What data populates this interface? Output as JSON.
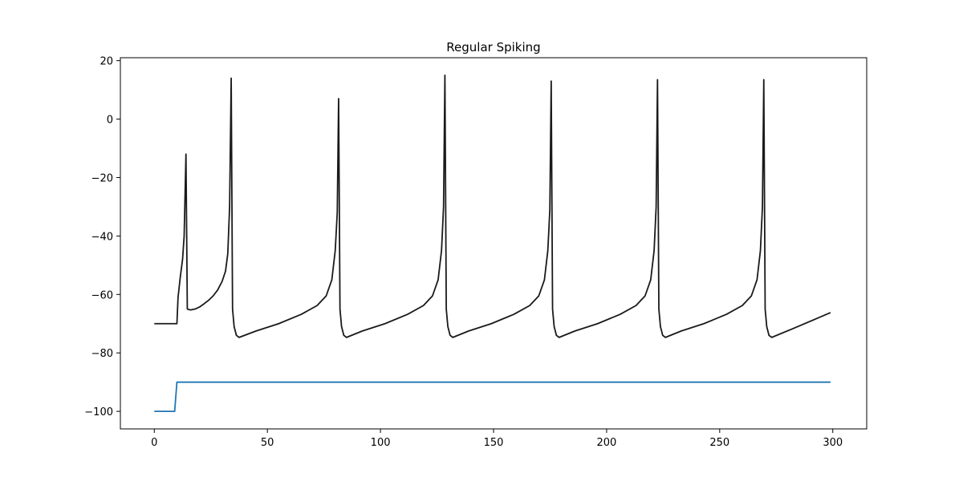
{
  "chart_data": {
    "type": "line",
    "title": "Regular Spiking",
    "xlabel": "",
    "ylabel": "",
    "xlim": [
      -15,
      315
    ],
    "ylim": [
      -106,
      21
    ],
    "x_ticks": [
      0,
      50,
      100,
      150,
      200,
      250,
      300
    ],
    "y_ticks": [
      -100,
      -80,
      -60,
      -40,
      -20,
      0,
      20
    ],
    "grid": false,
    "legend": "none",
    "series": [
      {
        "color": "#1a1a1a",
        "points": [
          [
            0,
            -70
          ],
          [
            10,
            -70
          ],
          [
            10.5,
            -61
          ],
          [
            11.5,
            -54
          ],
          [
            12.5,
            -48
          ],
          [
            13.2,
            -40
          ],
          [
            14,
            -12
          ],
          [
            14.6,
            -65
          ],
          [
            16,
            -65.3
          ],
          [
            18,
            -65
          ],
          [
            20,
            -64.3
          ],
          [
            22,
            -63.2
          ],
          [
            24,
            -62
          ],
          [
            26,
            -60.5
          ],
          [
            28,
            -58.5
          ],
          [
            30,
            -55.5
          ],
          [
            31.5,
            -52
          ],
          [
            32.5,
            -46
          ],
          [
            33.3,
            -30
          ],
          [
            34,
            14
          ],
          [
            34.6,
            -65
          ],
          [
            35.3,
            -71
          ],
          [
            36.3,
            -74
          ],
          [
            37.5,
            -74.7
          ],
          [
            45,
            -72.5
          ],
          [
            55,
            -70
          ],
          [
            65,
            -66.8
          ],
          [
            72,
            -63.8
          ],
          [
            76,
            -60.5
          ],
          [
            78.5,
            -55
          ],
          [
            80,
            -45
          ],
          [
            80.9,
            -32
          ],
          [
            81.5,
            7
          ],
          [
            82.1,
            -65
          ],
          [
            82.8,
            -71
          ],
          [
            83.8,
            -74
          ],
          [
            85,
            -74.7
          ],
          [
            92,
            -72.5
          ],
          [
            102,
            -70
          ],
          [
            112,
            -66.8
          ],
          [
            119,
            -63.8
          ],
          [
            123,
            -60.5
          ],
          [
            125.5,
            -55
          ],
          [
            127,
            -45
          ],
          [
            127.9,
            -30
          ],
          [
            128.5,
            15
          ],
          [
            129.1,
            -65
          ],
          [
            129.8,
            -71
          ],
          [
            130.8,
            -74
          ],
          [
            132,
            -74.7
          ],
          [
            139,
            -72.5
          ],
          [
            149,
            -70
          ],
          [
            159,
            -66.8
          ],
          [
            166,
            -63.8
          ],
          [
            170,
            -60.5
          ],
          [
            172.5,
            -55
          ],
          [
            174,
            -45
          ],
          [
            174.9,
            -31
          ],
          [
            175.5,
            13
          ],
          [
            176.1,
            -65
          ],
          [
            176.8,
            -71
          ],
          [
            177.8,
            -74
          ],
          [
            179,
            -74.7
          ],
          [
            186,
            -72.5
          ],
          [
            196,
            -70
          ],
          [
            206,
            -66.8
          ],
          [
            213,
            -63.8
          ],
          [
            217,
            -60.5
          ],
          [
            219.5,
            -55
          ],
          [
            221,
            -45
          ],
          [
            221.9,
            -30
          ],
          [
            222.5,
            13.5
          ],
          [
            223.1,
            -65
          ],
          [
            223.8,
            -71
          ],
          [
            224.8,
            -74
          ],
          [
            226,
            -74.7
          ],
          [
            233,
            -72.5
          ],
          [
            243,
            -70
          ],
          [
            253,
            -66.8
          ],
          [
            260,
            -63.8
          ],
          [
            264,
            -60.5
          ],
          [
            266.5,
            -55
          ],
          [
            268,
            -45
          ],
          [
            268.9,
            -30
          ],
          [
            269.5,
            13.5
          ],
          [
            270.1,
            -65
          ],
          [
            270.8,
            -71
          ],
          [
            271.8,
            -74
          ],
          [
            273,
            -74.7
          ],
          [
            283,
            -71.5
          ],
          [
            293,
            -68.2
          ],
          [
            299,
            -66.2
          ]
        ]
      },
      {
        "color": "#1f77b4",
        "points": [
          [
            0,
            -100
          ],
          [
            9,
            -100
          ],
          [
            10,
            -90
          ],
          [
            299,
            -90
          ]
        ]
      }
    ]
  }
}
